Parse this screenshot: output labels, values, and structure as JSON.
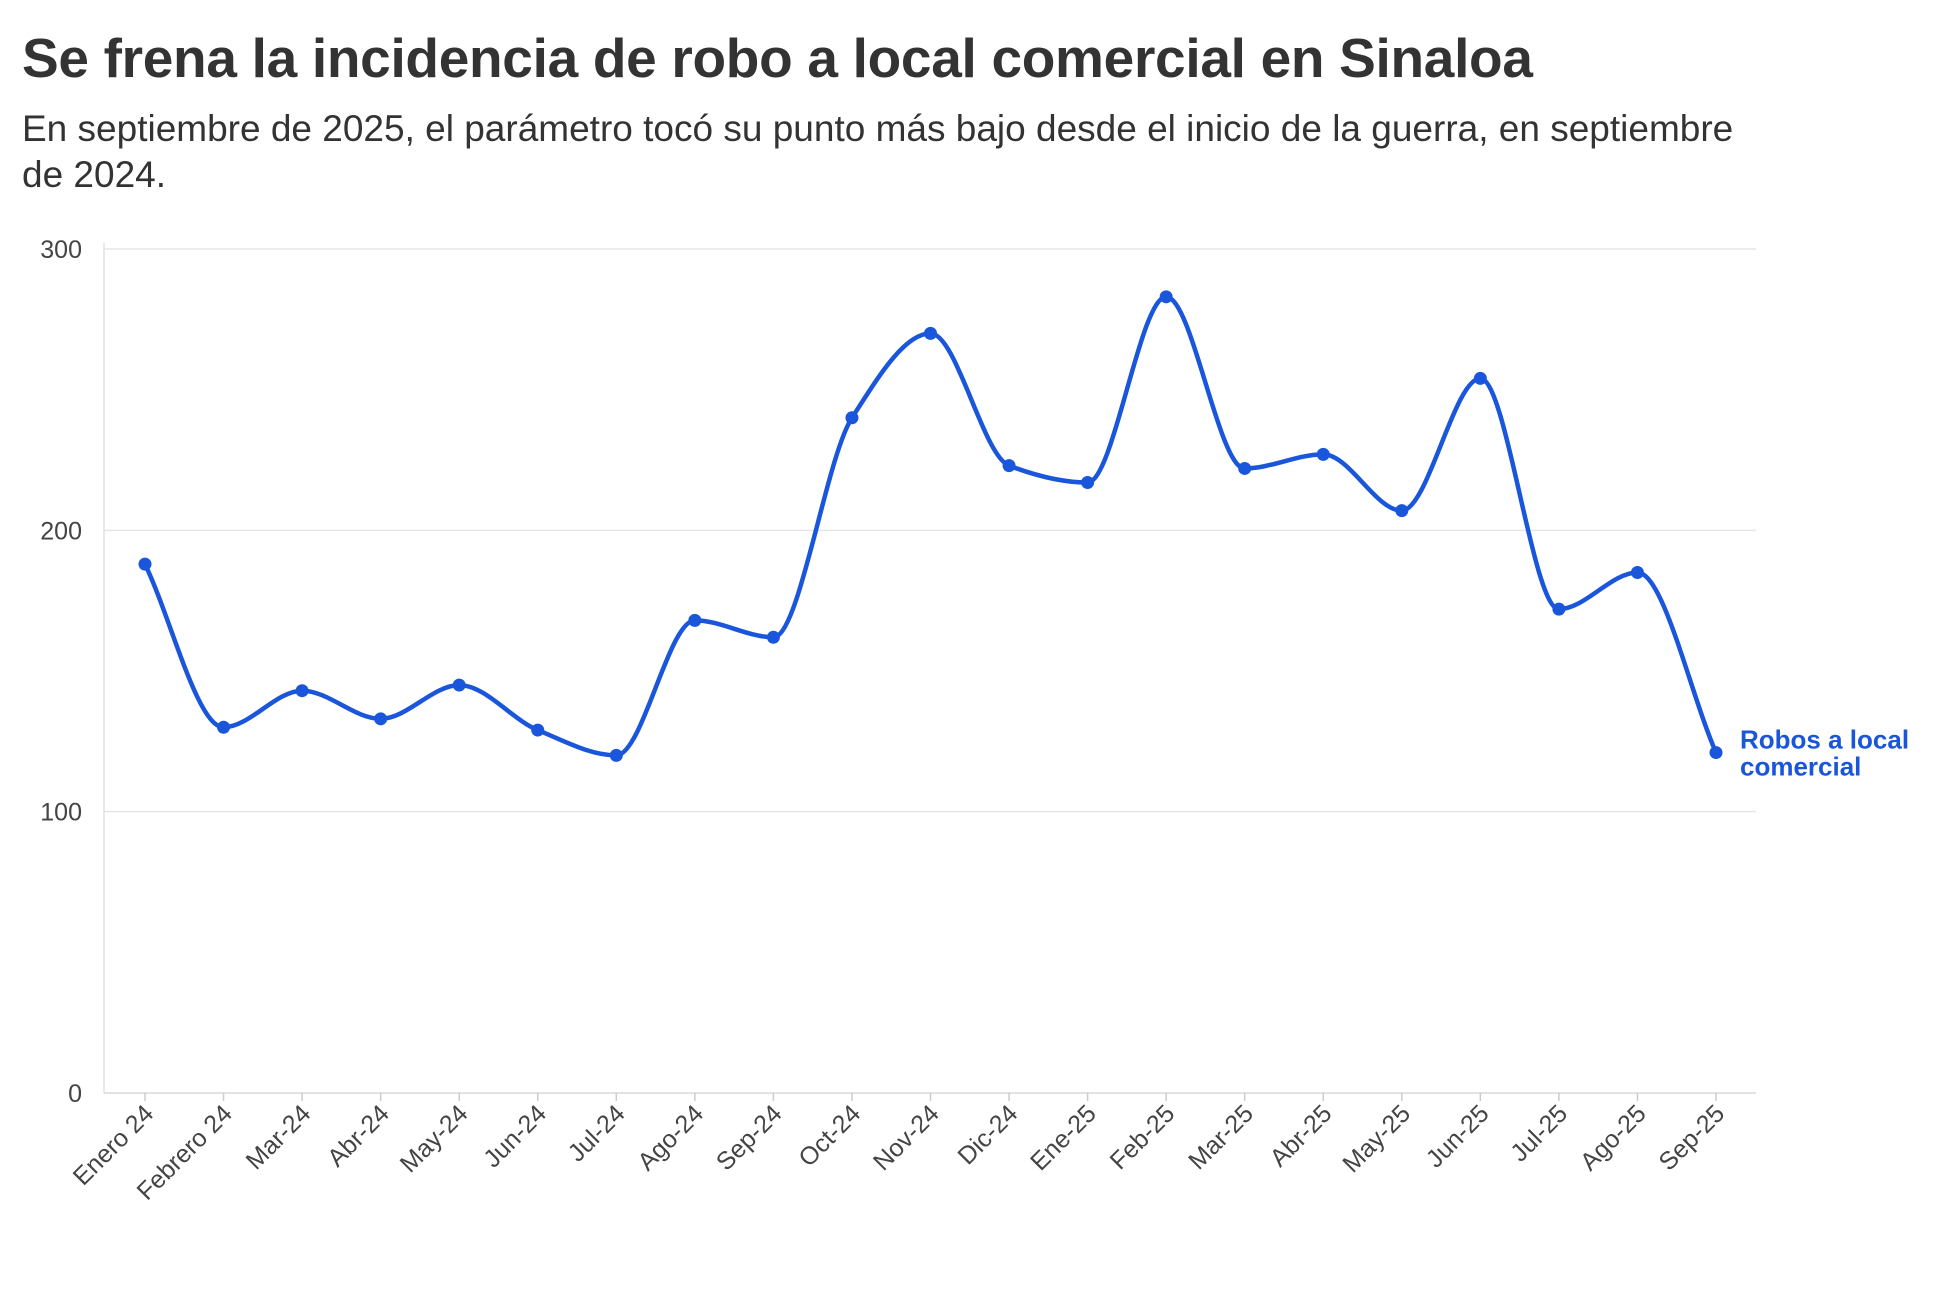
{
  "title": "Se frena la incidencia de robo a local comercial en Sinaloa",
  "subtitle": "En septiembre de 2025, el parámetro tocó su punto más bajo desde el inicio de la guerra, en septiembre de 2024.",
  "chart_data": {
    "type": "line",
    "categories": [
      "Enero 24",
      "Febrero 24",
      "Mar-24",
      "Abr-24",
      "May-24",
      "Jun-24",
      "Jul-24",
      "Ago-24",
      "Sep-24",
      "Oct-24",
      "Nov-24",
      "Dic-24",
      "Ene-25",
      "Feb-25",
      "Mar-25",
      "Abr-25",
      "May-25",
      "Jun-25",
      "Jul-25",
      "Ago-25",
      "Sep-25"
    ],
    "series": [
      {
        "name": "Robos a local comercial",
        "label_lines": [
          "Robos a local",
          "comercial"
        ],
        "color": "#1a56db",
        "values": [
          188,
          130,
          143,
          133,
          145,
          129,
          120,
          168,
          162,
          240,
          270,
          223,
          217,
          283,
          222,
          227,
          207,
          254,
          172,
          185,
          121
        ]
      }
    ],
    "ylim": [
      0,
      300
    ],
    "yticks": [
      0,
      100,
      200,
      300
    ],
    "grid": true,
    "smooth": true,
    "xlabel": "",
    "ylabel": ""
  }
}
